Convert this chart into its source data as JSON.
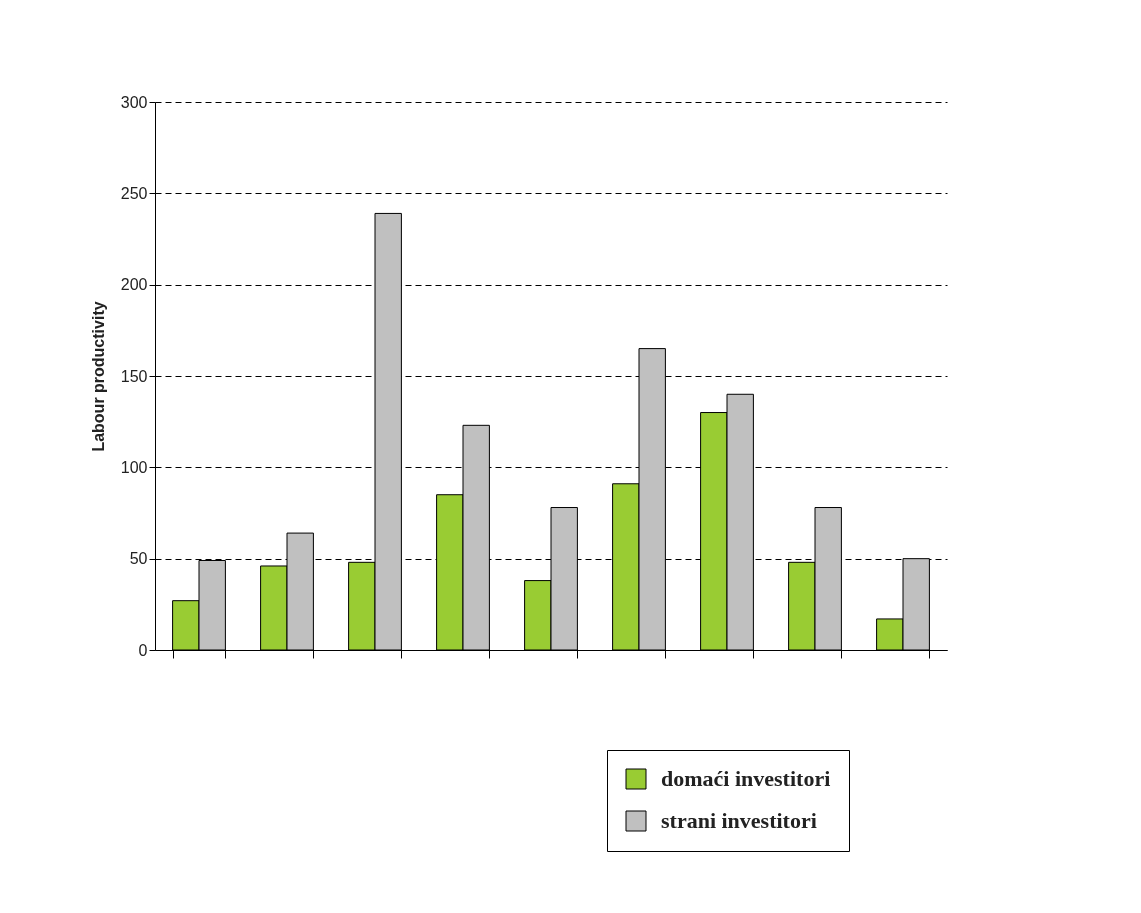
{
  "chart_data": {
    "type": "bar",
    "ylabel": "Labour productivity",
    "categories": [
      null,
      null,
      null,
      null,
      null,
      null,
      null,
      null,
      null
    ],
    "series": [
      {
        "name": "domaći investitori",
        "color": "#99cc33",
        "values": [
          27,
          46,
          48,
          85,
          38,
          91,
          130,
          48,
          17
        ]
      },
      {
        "name": "strani investitori",
        "color": "#c0c0c0",
        "values": [
          49,
          64,
          239,
          123,
          78,
          165,
          140,
          78,
          50
        ]
      }
    ],
    "ylim": [
      0,
      300
    ],
    "yticks": [
      0,
      50,
      100,
      150,
      200,
      250,
      300
    ],
    "grid": "y",
    "legend": "bottom right"
  }
}
